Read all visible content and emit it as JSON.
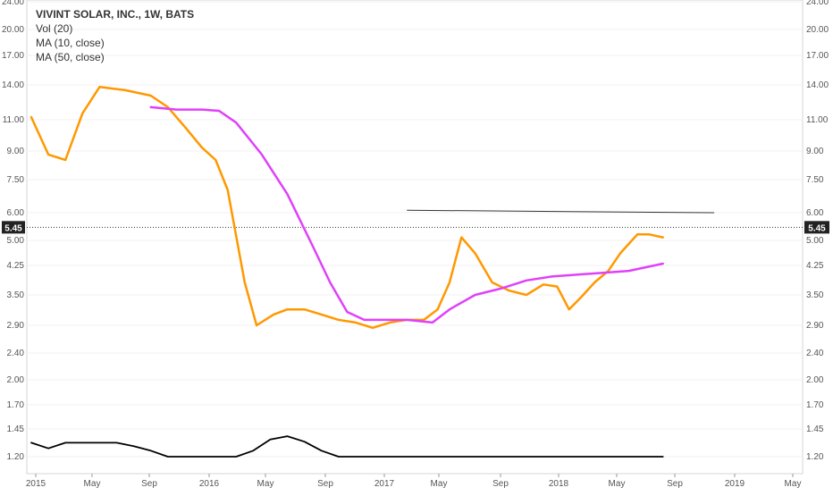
{
  "chart_data": {
    "type": "line",
    "title": "VIVINT SOLAR, INC., 1W, BATS",
    "indicators": [
      "Vol (20)",
      "MA (10, close)",
      "MA (50, close)"
    ],
    "y_ticks": [
      "24.00",
      "20.00",
      "17.00",
      "14.00",
      "11.00",
      "9.00",
      "7.50",
      "6.00",
      "5.00",
      "4.25",
      "3.50",
      "2.90",
      "2.40",
      "2.00",
      "1.70",
      "1.45",
      "1.20"
    ],
    "x_ticks": [
      "2015",
      "May",
      "Sep",
      "2016",
      "May",
      "Sep",
      "2017",
      "May",
      "Sep",
      "2018",
      "May",
      "Sep",
      "2019",
      "May"
    ],
    "last_price": "5.45",
    "y_scale": "log",
    "x_range": [
      2015.0,
      2019.45
    ],
    "resistance_line": {
      "from": [
        2017.2,
        6.1
      ],
      "to": [
        2019.0,
        6.0
      ]
    },
    "series": [
      {
        "name": "MA (10, close)",
        "color": "#ff9800",
        "x": [
          2015.0,
          2015.1,
          2015.2,
          2015.3,
          2015.4,
          2015.55,
          2015.7,
          2015.8,
          2015.9,
          2016.0,
          2016.08,
          2016.15,
          2016.25,
          2016.32,
          2016.42,
          2016.5,
          2016.6,
          2016.7,
          2016.8,
          2016.9,
          2017.0,
          2017.1,
          2017.2,
          2017.3,
          2017.38,
          2017.45,
          2017.52,
          2017.6,
          2017.7,
          2017.8,
          2017.9,
          2018.0,
          2018.08,
          2018.15,
          2018.22,
          2018.3,
          2018.38,
          2018.45,
          2018.55,
          2018.62,
          2018.7
        ],
        "values": [
          11.2,
          8.8,
          8.5,
          11.5,
          13.8,
          13.5,
          13.0,
          12.0,
          10.5,
          9.2,
          8.5,
          7.0,
          3.8,
          2.9,
          3.1,
          3.2,
          3.2,
          3.1,
          3.0,
          2.95,
          2.85,
          2.95,
          3.0,
          3.0,
          3.2,
          3.8,
          5.1,
          4.6,
          3.8,
          3.6,
          3.5,
          3.75,
          3.7,
          3.2,
          3.45,
          3.8,
          4.1,
          4.6,
          5.2,
          5.2,
          5.1
        ]
      },
      {
        "name": "MA (50, close)",
        "color": "#e040fb",
        "x": [
          2015.7,
          2015.85,
          2016.0,
          2016.1,
          2016.2,
          2016.35,
          2016.5,
          2016.65,
          2016.75,
          2016.85,
          2016.95,
          2017.05,
          2017.2,
          2017.35,
          2017.45,
          2017.6,
          2017.75,
          2017.9,
          2018.05,
          2018.2,
          2018.35,
          2018.5,
          2018.7
        ],
        "values": [
          12.0,
          11.8,
          11.8,
          11.7,
          10.8,
          8.8,
          6.8,
          4.8,
          3.8,
          3.15,
          3.0,
          3.0,
          3.0,
          2.95,
          3.2,
          3.5,
          3.65,
          3.85,
          3.95,
          4.0,
          4.05,
          4.1,
          4.3
        ]
      },
      {
        "name": "Vol (20)",
        "color": "#000000",
        "x": [
          2015.0,
          2015.1,
          2015.2,
          2015.35,
          2015.5,
          2015.6,
          2015.7,
          2015.8,
          2015.9,
          2016.0,
          2016.1,
          2016.2,
          2016.3,
          2016.4,
          2016.5,
          2016.6,
          2016.7,
          2016.8,
          2016.9,
          2017.0,
          2017.2,
          2017.4,
          2017.6,
          2017.8,
          2018.0,
          2018.2,
          2018.4,
          2018.6,
          2018.7
        ],
        "values": [
          1.32,
          1.27,
          1.32,
          1.32,
          1.32,
          1.29,
          1.25,
          1.2,
          1.17,
          1.15,
          1.15,
          1.15,
          1.25,
          1.35,
          1.38,
          1.33,
          1.25,
          1.2,
          1.17,
          1.15,
          1.15,
          1.18,
          1.2,
          1.19,
          1.18,
          1.17,
          1.18,
          1.19,
          1.18
        ]
      }
    ]
  }
}
